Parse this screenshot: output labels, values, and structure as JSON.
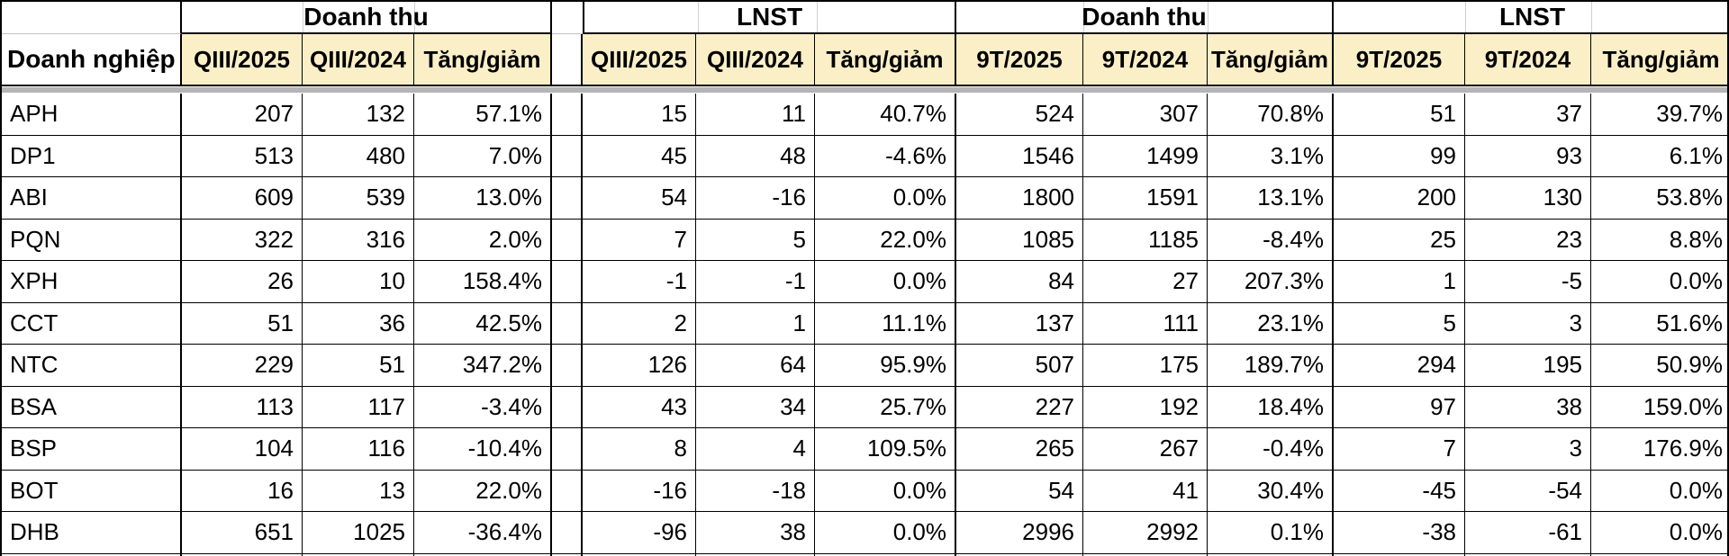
{
  "table": {
    "corner_label": "Doanh nghiệp",
    "group_headers": [
      "Doanh thu",
      "LNST",
      "Doanh thu",
      "LNST"
    ],
    "sub_headers": [
      "QIII/2025",
      "QIII/2024",
      "Tăng/giảm",
      "QIII/2025",
      "QIII/2024",
      "Tăng/giảm",
      "9T/2025",
      "9T/2024",
      "Tăng/giảm",
      "9T/2025",
      "9T/2024",
      "Tăng/giảm"
    ],
    "rows": [
      {
        "name": "APH",
        "values": [
          "207",
          "132",
          "57.1%",
          "15",
          "11",
          "40.7%",
          "524",
          "307",
          "70.8%",
          "51",
          "37",
          "39.7%"
        ]
      },
      {
        "name": "DP1",
        "values": [
          "513",
          "480",
          "7.0%",
          "45",
          "48",
          "-4.6%",
          "1546",
          "1499",
          "3.1%",
          "99",
          "93",
          "6.1%"
        ]
      },
      {
        "name": "ABI",
        "values": [
          "609",
          "539",
          "13.0%",
          "54",
          "-16",
          "0.0%",
          "1800",
          "1591",
          "13.1%",
          "200",
          "130",
          "53.8%"
        ]
      },
      {
        "name": "PQN",
        "values": [
          "322",
          "316",
          "2.0%",
          "7",
          "5",
          "22.0%",
          "1085",
          "1185",
          "-8.4%",
          "25",
          "23",
          "8.8%"
        ]
      },
      {
        "name": "XPH",
        "values": [
          "26",
          "10",
          "158.4%",
          "-1",
          "-1",
          "0.0%",
          "84",
          "27",
          "207.3%",
          "1",
          "-5",
          "0.0%"
        ]
      },
      {
        "name": "CCT",
        "values": [
          "51",
          "36",
          "42.5%",
          "2",
          "1",
          "11.1%",
          "137",
          "111",
          "23.1%",
          "5",
          "3",
          "51.6%"
        ]
      },
      {
        "name": "NTC",
        "values": [
          "229",
          "51",
          "347.2%",
          "126",
          "64",
          "95.9%",
          "507",
          "175",
          "189.7%",
          "294",
          "195",
          "50.9%"
        ]
      },
      {
        "name": "BSA",
        "values": [
          "113",
          "117",
          "-3.4%",
          "43",
          "34",
          "25.7%",
          "227",
          "192",
          "18.4%",
          "97",
          "38",
          "159.0%"
        ]
      },
      {
        "name": "BSP",
        "values": [
          "104",
          "116",
          "-10.4%",
          "8",
          "4",
          "109.5%",
          "265",
          "267",
          "-0.4%",
          "7",
          "3",
          "176.9%"
        ]
      },
      {
        "name": "BOT",
        "values": [
          "16",
          "13",
          "22.0%",
          "-16",
          "-18",
          "0.0%",
          "54",
          "41",
          "30.4%",
          "-45",
          "-54",
          "0.0%"
        ]
      },
      {
        "name": "DHB",
        "values": [
          "651",
          "1025",
          "-36.4%",
          "-96",
          "38",
          "0.0%",
          "2996",
          "2992",
          "0.1%",
          "-38",
          "-61",
          "0.0%"
        ]
      }
    ]
  },
  "colors": {
    "header_fill": "#FBEFC7",
    "grid_line": "#000000",
    "pane_divider": "#B5B5B5",
    "flag_red": "#E33B2E"
  },
  "bottom_flag_columns": [
    3,
    7,
    10,
    13
  ]
}
